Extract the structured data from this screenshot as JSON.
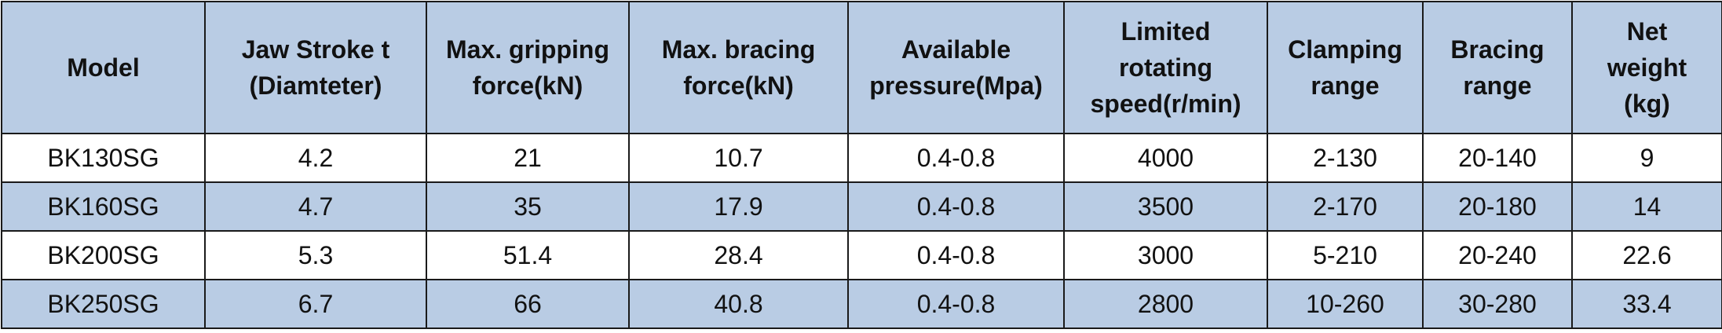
{
  "table": {
    "headers": [
      "Model",
      "Jaw Stroke t\n(Diamteter)",
      "Max. gripping\nforce(kN)",
      "Max. bracing\nforce(kN)",
      "Available\npressure(Mpa)",
      "Limited\nrotating\nspeed(r/min)",
      "Clamping\nrange",
      "Bracing\nrange",
      "Net\nweight\n(kg)"
    ],
    "rows": [
      [
        "BK130SG",
        "4.2",
        "21",
        "10.7",
        "0.4-0.8",
        "4000",
        "2-130",
        "20-140",
        "9"
      ],
      [
        "BK160SG",
        "4.7",
        "35",
        "17.9",
        "0.4-0.8",
        "3500",
        "2-170",
        "20-180",
        "14"
      ],
      [
        "BK200SG",
        "5.3",
        "51.4",
        "28.4",
        "0.4-0.8",
        "3000",
        "5-210",
        "20-240",
        "22.6"
      ],
      [
        "BK250SG",
        "6.7",
        "66",
        "40.8",
        "0.4-0.8",
        "2800",
        "10-260",
        "30-280",
        "33.4"
      ]
    ]
  },
  "colors": {
    "header_bg": "#b9cce4",
    "alt_row_bg": "#b9cce4",
    "border": "#1a1a1a"
  }
}
